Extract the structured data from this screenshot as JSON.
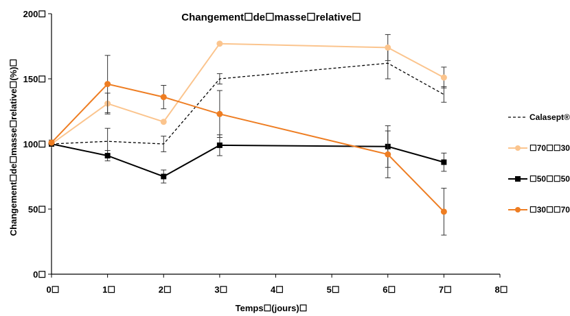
{
  "chart_data": {
    "type": "line",
    "title": "Changement☐de☐masse☐relative☐",
    "xlabel": "Temps☐(jours)☐",
    "ylabel": "Changement☐de☐masse☐relative☐(%)☐",
    "xlim": [
      0,
      8
    ],
    "ylim": [
      0,
      200
    ],
    "x_ticks": [
      0,
      1,
      2,
      3,
      4,
      5,
      6,
      7,
      8
    ],
    "x_tick_labels": [
      "0☐",
      "1☐",
      "2☐",
      "3☐",
      "4☐",
      "5☐",
      "6☐",
      "7☐",
      "8☐"
    ],
    "y_ticks": [
      0,
      50,
      100,
      150,
      200
    ],
    "y_tick_labels": [
      "0☐",
      "50☐",
      "100☐",
      "150☐",
      "200☐"
    ],
    "grid": false,
    "legend_position": "right",
    "series": [
      {
        "name": "Calasept®☐",
        "color": "#000000",
        "dash": true,
        "marker": "none",
        "x": [
          0,
          1,
          2,
          3,
          6,
          7
        ],
        "y": [
          100,
          102,
          100,
          150,
          162,
          138
        ],
        "err": [
          0,
          10,
          6,
          4,
          12,
          6
        ]
      },
      {
        "name": "☐70☐☐30☐",
        "color": "#fbc48d",
        "dash": false,
        "marker": "circle",
        "x": [
          0,
          1,
          2,
          3,
          6,
          7
        ],
        "y": [
          100,
          131,
          117,
          177,
          174,
          151
        ],
        "err": [
          0,
          8,
          0,
          0,
          10,
          8
        ]
      },
      {
        "name": "☐50☐☐50☐",
        "color": "#000000",
        "dash": false,
        "marker": "square",
        "x": [
          0,
          1,
          2,
          3,
          6,
          7
        ],
        "y": [
          100,
          91,
          75,
          99,
          98,
          86
        ],
        "err": [
          0,
          4,
          5,
          8,
          16,
          7
        ]
      },
      {
        "name": "☐30☐☐70☐",
        "color": "#ee7d22",
        "dash": false,
        "marker": "circle",
        "x": [
          0,
          1,
          2,
          3,
          6,
          7
        ],
        "y": [
          101,
          146,
          136,
          123,
          92,
          48
        ],
        "err": [
          2,
          22,
          9,
          18,
          18,
          18
        ]
      }
    ]
  }
}
